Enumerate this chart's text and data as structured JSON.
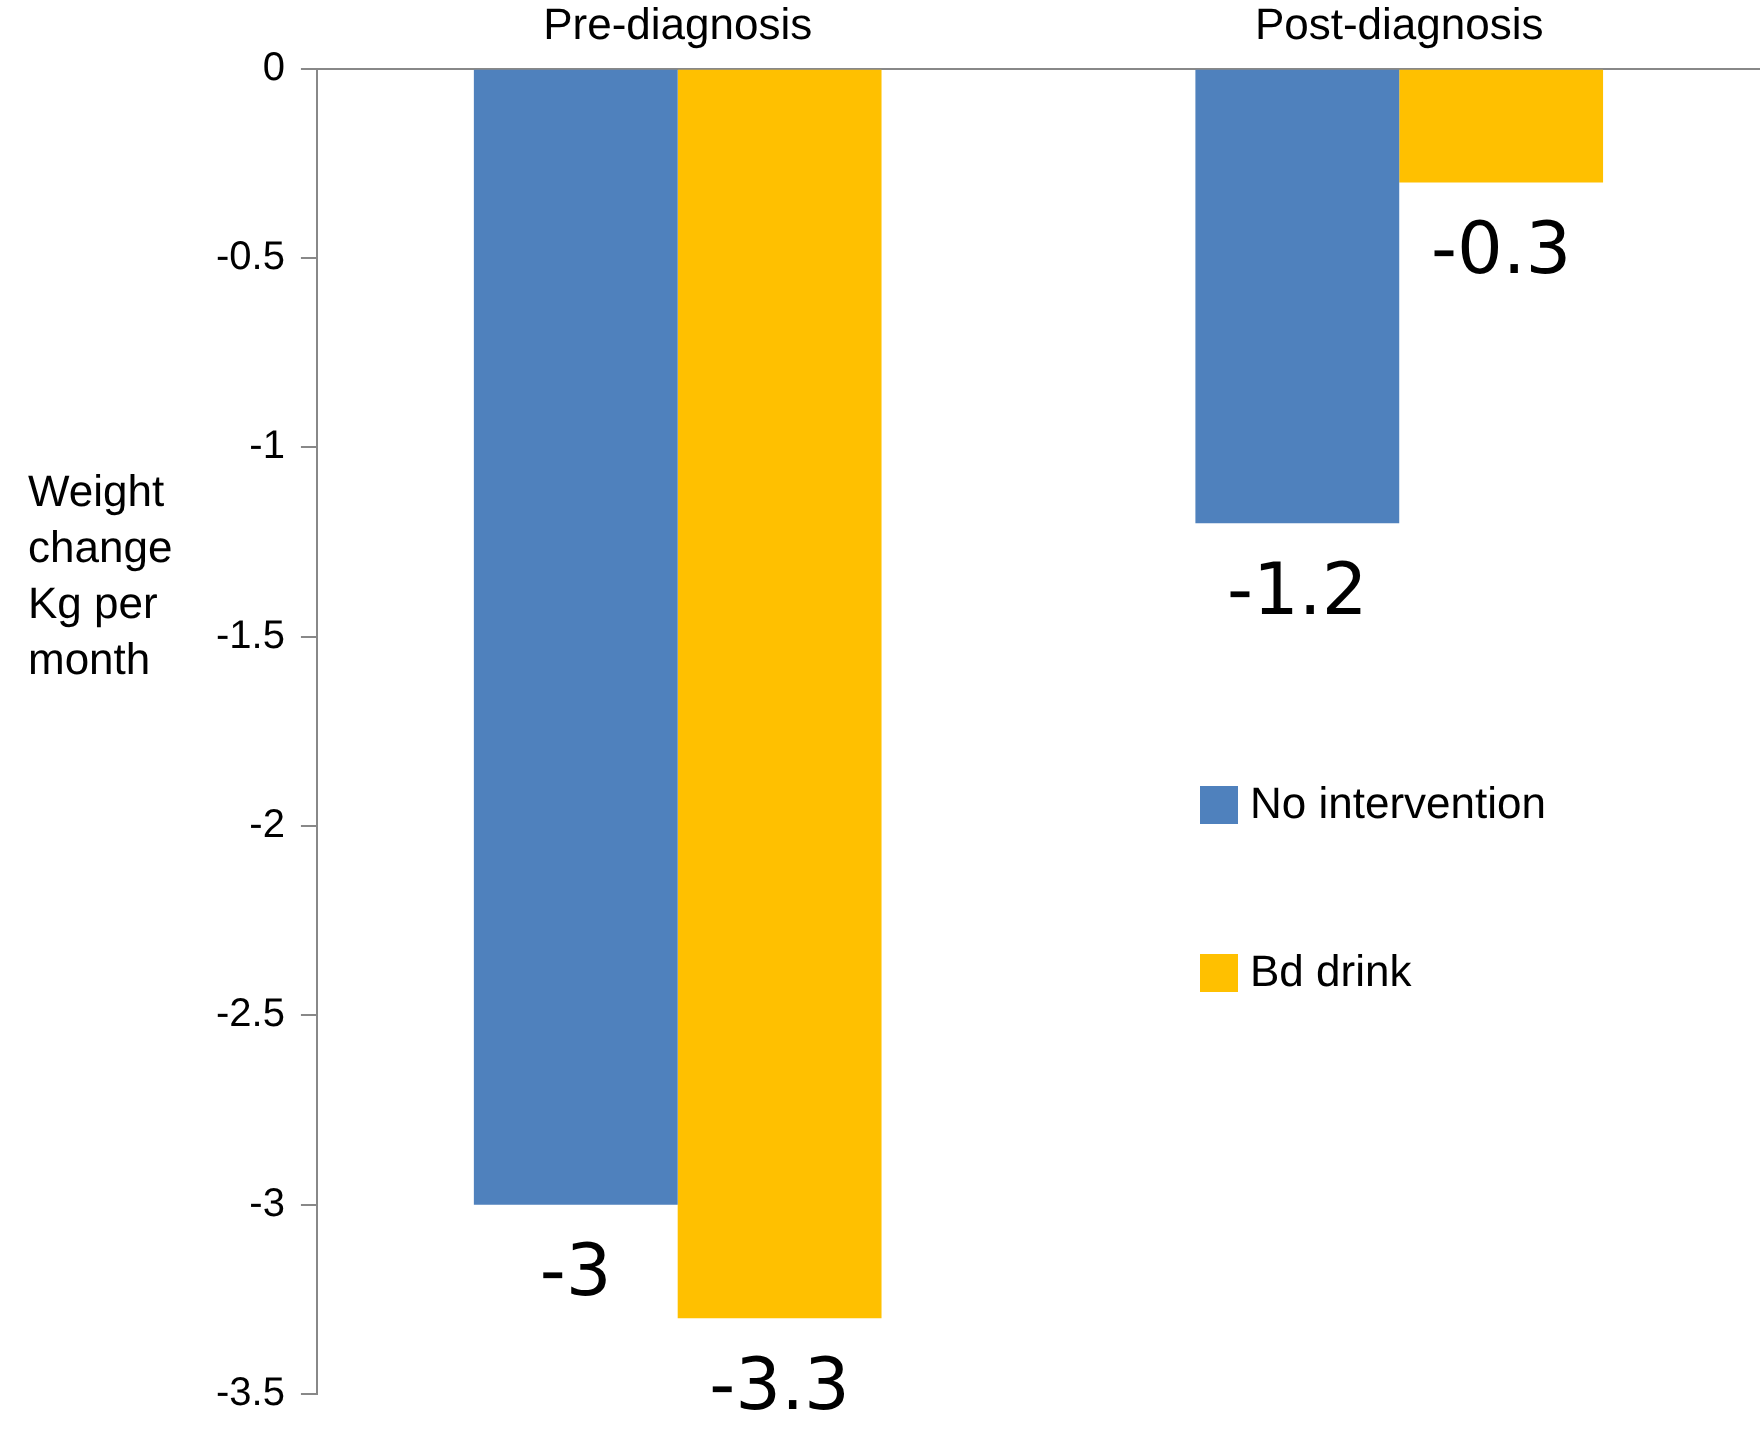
{
  "chart_data": {
    "type": "bar",
    "ylabel": "Weight change Kg per month",
    "categories": [
      "Pre-diagnosis",
      "Post-diagnosis"
    ],
    "series": [
      {
        "name": "No intervention",
        "color": "#4f81bd",
        "values": [
          -3,
          -1.2
        ]
      },
      {
        "name": "Bd drink",
        "color": "#ffc000",
        "values": [
          -3.3,
          -0.3
        ]
      }
    ],
    "ylim": [
      -3.5,
      0
    ],
    "yticks": [
      0,
      -0.5,
      -1,
      -1.5,
      -2,
      -2.5,
      -3,
      -3.5
    ],
    "grid": false,
    "data_labels": true,
    "legend": "right"
  }
}
